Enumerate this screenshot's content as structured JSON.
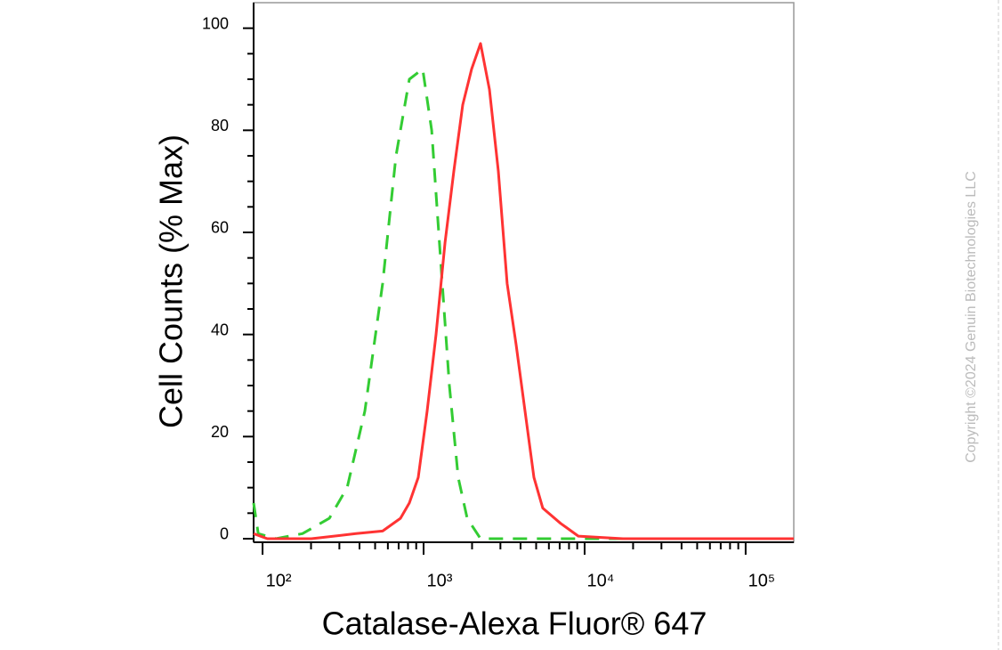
{
  "chart_data": {
    "type": "line",
    "xlabel": "Catalase-Alexa Fluor® 647",
    "ylabel": "Cell Counts (% Max)",
    "copyright": "Copyright ©2024 Genuin Biotechnologies LLC",
    "xscale": "log",
    "xlim": [
      88,
      199000
    ],
    "ylim": [
      -0.7,
      105
    ],
    "xticks": [
      {
        "value": 100,
        "label": "10²"
      },
      {
        "value": 1000,
        "label": "10³"
      },
      {
        "value": 10000,
        "label": "10⁴"
      },
      {
        "value": 100000,
        "label": "10⁵"
      }
    ],
    "xminorticks": [
      200,
      300,
      400,
      500,
      600,
      700,
      800,
      900,
      2000,
      3000,
      4000,
      5000,
      6000,
      7000,
      8000,
      9000,
      20000,
      30000,
      40000,
      50000,
      60000,
      70000,
      80000,
      90000
    ],
    "yticks": [
      0,
      20,
      40,
      60,
      80,
      100
    ],
    "yminorticks": [
      5,
      10,
      15,
      25,
      30,
      35,
      45,
      50,
      55,
      65,
      70,
      75,
      85,
      90,
      95
    ],
    "series": [
      {
        "color": "#33cc33",
        "dash": true,
        "x": [
          88,
          94,
          121,
          177,
          260,
          335,
          432,
          557,
          674,
          816,
          987,
          1122,
          1274,
          1446,
          1641,
          1866,
          2258,
          4842,
          199000
        ],
        "values": [
          7,
          1,
          0,
          1,
          4,
          10,
          25,
          50,
          75,
          90,
          92,
          80,
          55,
          30,
          12,
          4,
          0,
          0,
          0
        ]
      },
      {
        "color": "#ff3333",
        "dash": false,
        "x": [
          88,
          107,
          201,
          380,
          557,
          718,
          816,
          927,
          1052,
          1195,
          1358,
          1542,
          1750,
          1987,
          2258,
          2565,
          2911,
          3304,
          3758,
          4266,
          4842,
          5495,
          7096,
          9141,
          17300,
          199000
        ],
        "values": [
          1,
          0,
          0,
          1,
          1.5,
          4,
          7,
          12,
          25,
          40,
          58,
          72,
          85,
          92,
          97,
          88,
          72,
          50,
          38,
          25,
          12,
          6,
          3,
          0.5,
          0,
          0
        ]
      }
    ]
  }
}
